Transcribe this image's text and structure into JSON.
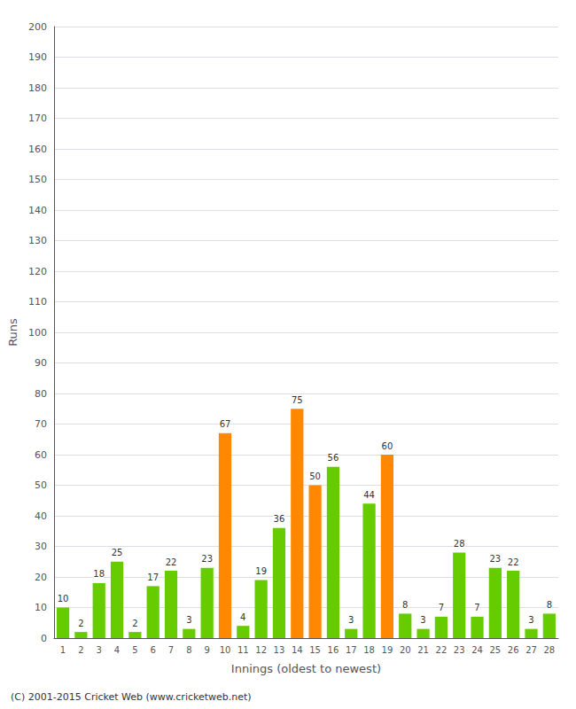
{
  "chart_data": {
    "type": "bar",
    "categories": [
      "1",
      "2",
      "3",
      "4",
      "5",
      "6",
      "7",
      "8",
      "9",
      "10",
      "11",
      "12",
      "13",
      "14",
      "15",
      "16",
      "17",
      "18",
      "19",
      "20",
      "21",
      "22",
      "23",
      "24",
      "25",
      "26",
      "27",
      "28"
    ],
    "values": [
      10,
      2,
      18,
      25,
      2,
      17,
      22,
      3,
      23,
      67,
      4,
      19,
      36,
      75,
      50,
      56,
      3,
      44,
      60,
      8,
      3,
      7,
      28,
      7,
      23,
      22,
      3,
      8
    ],
    "colors": [
      "#66cc00",
      "#66cc00",
      "#66cc00",
      "#66cc00",
      "#66cc00",
      "#66cc00",
      "#66cc00",
      "#66cc00",
      "#66cc00",
      "#ff8800",
      "#66cc00",
      "#66cc00",
      "#66cc00",
      "#ff8800",
      "#ff8800",
      "#66cc00",
      "#66cc00",
      "#66cc00",
      "#ff8800",
      "#66cc00",
      "#66cc00",
      "#66cc00",
      "#66cc00",
      "#66cc00",
      "#66cc00",
      "#66cc00",
      "#66cc00",
      "#66cc00"
    ],
    "xlabel": "Innings (oldest to newest)",
    "ylabel": "Runs",
    "ylim": [
      0,
      200
    ],
    "yticks": [
      0,
      10,
      20,
      30,
      40,
      50,
      60,
      70,
      80,
      90,
      100,
      110,
      120,
      130,
      140,
      150,
      160,
      170,
      180,
      190,
      200
    ],
    "grid": true,
    "data_labels": true,
    "annotations": [
      "(C) 2001-2015 Cricket Web (www.cricketweb.net)"
    ]
  }
}
